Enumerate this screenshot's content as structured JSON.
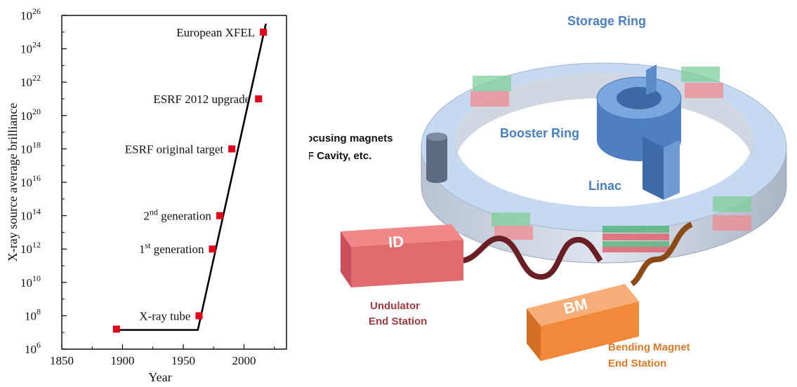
{
  "chart_data": {
    "type": "scatter",
    "xlabel": "Year",
    "ylabel": "X-ray source average brilliance",
    "xlim": [
      1850,
      2035
    ],
    "ylim_exponent": [
      6,
      26
    ],
    "y_scale": "log",
    "x_ticks": [
      "1850",
      "1900",
      "1950",
      "2000"
    ],
    "y_tick_exponents": [
      6,
      8,
      10,
      12,
      14,
      16,
      18,
      20,
      22,
      24,
      26
    ],
    "y_tick_base": "10",
    "points": [
      {
        "label": "",
        "x": 1895,
        "y_exponent": 7.2
      },
      {
        "label": "X-ray tube",
        "x": 1963,
        "y_exponent": 8.0
      },
      {
        "label_pre": "1",
        "label_sup": "st",
        "label_post": " generation",
        "x": 1974,
        "y_exponent": 12.0
      },
      {
        "label_pre": "2",
        "label_sup": "nd",
        "label_post": " generation",
        "x": 1980,
        "y_exponent": 14.0
      },
      {
        "label": "ESRF original target",
        "x": 1990,
        "y_exponent": 18.0
      },
      {
        "label": "ESRF 2012 upgrade",
        "x": 2012,
        "y_exponent": 21.0
      },
      {
        "label": "European XFEL",
        "x": 2016,
        "y_exponent": 25.0
      }
    ],
    "trend_line": [
      {
        "x": 1895,
        "y_exponent": 7.15
      },
      {
        "x": 1962,
        "y_exponent": 7.15
      },
      {
        "x": 2018,
        "y_exponent": 25.5
      }
    ],
    "marker_color": "#e0001a",
    "line_color": "#000000"
  },
  "diagram": {
    "storage_ring_label": "Storage Ring",
    "booster_ring_label": "Booster Ring",
    "linac_label": "Linac",
    "focusing_label_line1": "Focusing magnets",
    "focusing_label_line2": "RF Cavity, etc.",
    "id_box_label": "ID",
    "bm_box_label": "BM",
    "undulator_line1": "Undulator",
    "undulator_line2": "End Station",
    "bending_line1": "Bending Magnet",
    "bending_line2": "End Station",
    "colors": {
      "blue_label": "#4a7fc1",
      "undulator": "#a43a40",
      "bending": "#e07a2a",
      "id_box": "#e56366",
      "bm_box": "#f08a3a"
    }
  }
}
